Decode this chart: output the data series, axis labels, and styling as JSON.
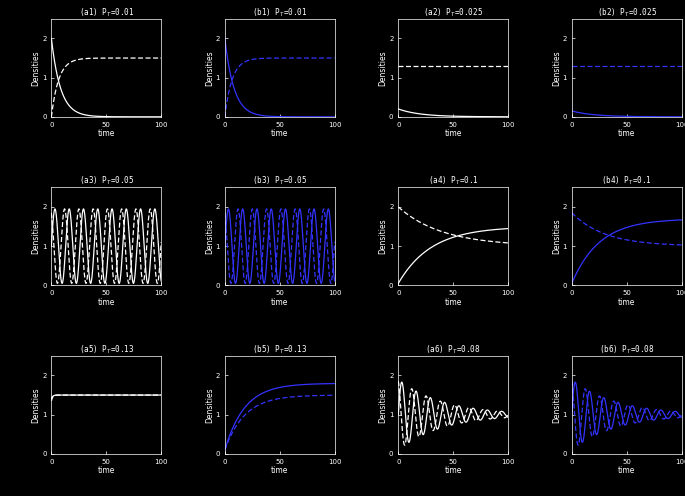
{
  "titles": [
    [
      "(a1) P$_T$=0.01",
      "(b1) P$_T$=0.01",
      "(a2) P$_T$=0.025",
      "(b2) P$_T$=0.025"
    ],
    [
      "(a3) P$_T$=0.05",
      "(b3) P$_T$=0.05",
      "(a4) P$_T$=0.1",
      "(b4) P$_T$=0.1"
    ],
    [
      "(a5) P$_T$=0.13",
      "(b5) P$_T$=0.13",
      "(a6) P$_T$=0.08",
      "(b6) P$_T$=0.08"
    ]
  ],
  "xlim": [
    0,
    100
  ],
  "ylim": [
    0,
    2.5
  ],
  "yticks": [
    0,
    1,
    2
  ],
  "xticks": [
    0,
    50,
    100
  ],
  "xlabel": "time",
  "ylabel": "Densities",
  "bg_color": "#000000",
  "fg_color": "#ffffff",
  "blue_color": "#3333ff",
  "title_fontsize": 5.5,
  "label_fontsize": 5.5,
  "tick_fontsize": 5,
  "linewidth": 0.9
}
